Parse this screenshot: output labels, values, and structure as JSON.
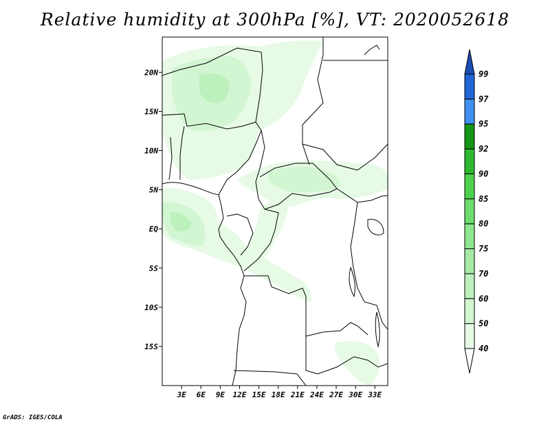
{
  "title": "Relative humidity at 300hPa [%], VT: 2020052618",
  "footer": "GrADS: IGES/COLA",
  "map": {
    "lon_min": 0,
    "lon_max": 35,
    "lat_min": -20,
    "lat_max": 24.5,
    "lat_ticks": [
      {
        "value": 20,
        "label": "20N"
      },
      {
        "value": 15,
        "label": "15N"
      },
      {
        "value": 10,
        "label": "10N"
      },
      {
        "value": 5,
        "label": "5N"
      },
      {
        "value": 0,
        "label": "EQ"
      },
      {
        "value": -5,
        "label": "5S"
      },
      {
        "value": -10,
        "label": "10S"
      },
      {
        "value": -15,
        "label": "15S"
      }
    ],
    "lon_ticks": [
      {
        "value": 3,
        "label": "3E"
      },
      {
        "value": 6,
        "label": "6E"
      },
      {
        "value": 9,
        "label": "9E"
      },
      {
        "value": 12,
        "label": "12E"
      },
      {
        "value": 15,
        "label": "15E"
      },
      {
        "value": 18,
        "label": "18E"
      },
      {
        "value": 21,
        "label": "21E"
      },
      {
        "value": 24,
        "label": "24E"
      },
      {
        "value": 27,
        "label": "27E"
      },
      {
        "value": 30,
        "label": "30E"
      },
      {
        "value": 33,
        "label": "33E"
      }
    ]
  },
  "colorbar": {
    "levels": [
      "40",
      "50",
      "60",
      "70",
      "75",
      "80",
      "85",
      "90",
      "92",
      "95",
      "97",
      "99"
    ],
    "colors": [
      "#ffffff",
      "#e6fae6",
      "#d2f5d2",
      "#bcf0bc",
      "#a5eba5",
      "#8ee68e",
      "#6edc6e",
      "#4ed24e",
      "#2fb82f",
      "#169616",
      "#3f8ff0",
      "#2266d6",
      "#1a4cb4"
    ]
  },
  "humidity_zones": [
    {
      "level": "50",
      "color": "#e6fae6",
      "region": "sahel-north-nigeria-niger"
    },
    {
      "level": "50",
      "color": "#e6fae6",
      "region": "central-african-republic-band"
    },
    {
      "level": "50",
      "color": "#e6fae6",
      "region": "gulf-of-guinea-gabon"
    },
    {
      "level": "50",
      "color": "#e6fae6",
      "region": "congo-diagonal-band"
    },
    {
      "level": "50",
      "color": "#e6fae6",
      "region": "zambia-mozambique"
    },
    {
      "level": "60",
      "color": "#d2f5d2",
      "region": "niger-core"
    },
    {
      "level": "60",
      "color": "#d2f5d2",
      "region": "car-core"
    },
    {
      "level": "60",
      "color": "#d2f5d2",
      "region": "gabon-core"
    },
    {
      "level": "70",
      "color": "#bcf0bc",
      "region": "niger-peak"
    },
    {
      "level": "70",
      "color": "#bcf0bc",
      "region": "gulf-peak"
    }
  ]
}
